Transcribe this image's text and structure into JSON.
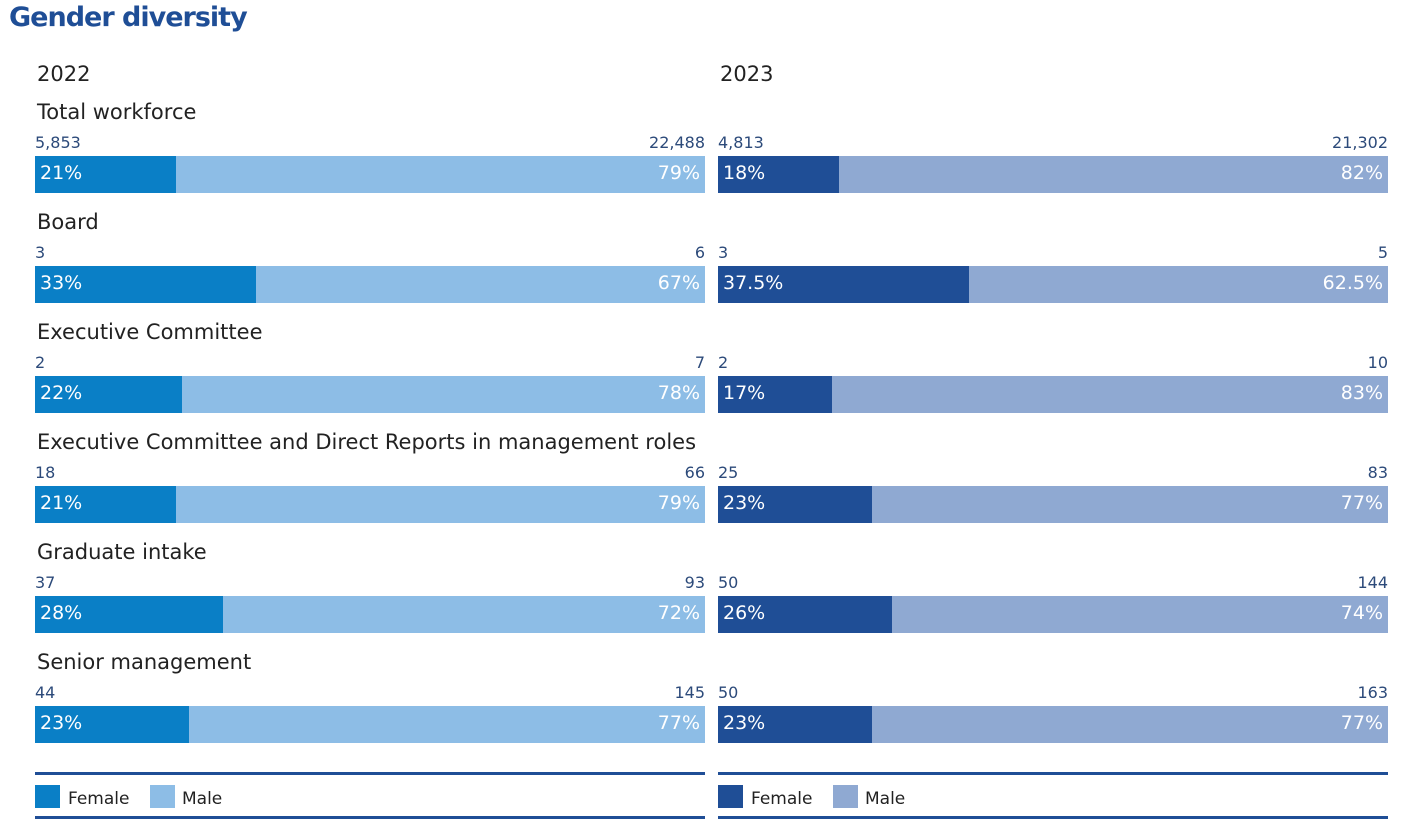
{
  "title": "Gender diversity",
  "colors": {
    "title": "#1f4e96",
    "2022_female": "#0a7fc6",
    "2022_male": "#8dbde6",
    "2023_female": "#1f4e96",
    "2023_male": "#8fa9d2"
  },
  "legend": {
    "female": "Female",
    "male": "Male"
  },
  "chart_data": [
    {
      "type": "bar",
      "title": "2022",
      "orientation": "horizontal-stacked-100",
      "categories": [
        "Total workforce",
        "Board",
        "Executive Committee",
        "Executive Committee and Direct Reports in management roles",
        "Graduate intake",
        "Senior management"
      ],
      "series": [
        {
          "name": "Female",
          "percent_labels": [
            "21%",
            "33%",
            "22%",
            "21%",
            "28%",
            "23%"
          ],
          "values": [
            21,
            33,
            22,
            21,
            28,
            23
          ],
          "counts": [
            "5,853",
            "3",
            "2",
            "18",
            "37",
            "44"
          ]
        },
        {
          "name": "Male",
          "percent_labels": [
            "79%",
            "67%",
            "78%",
            "79%",
            "72%",
            "77%"
          ],
          "values": [
            79,
            67,
            78,
            79,
            72,
            77
          ],
          "counts": [
            "22,488",
            "6",
            "7",
            "66",
            "93",
            "145"
          ]
        }
      ]
    },
    {
      "type": "bar",
      "title": "2023",
      "orientation": "horizontal-stacked-100",
      "categories": [
        "Total workforce",
        "Board",
        "Executive Committee",
        "Executive Committee and Direct Reports in management roles",
        "Graduate intake",
        "Senior management"
      ],
      "series": [
        {
          "name": "Female",
          "percent_labels": [
            "18%",
            "37.5%",
            "17%",
            "23%",
            "26%",
            "23%"
          ],
          "values": [
            18,
            37.5,
            17,
            23,
            26,
            23
          ],
          "counts": [
            "4,813",
            "3",
            "2",
            "25",
            "50",
            "50"
          ]
        },
        {
          "name": "Male",
          "percent_labels": [
            "82%",
            "62.5%",
            "83%",
            "77%",
            "74%",
            "77%"
          ],
          "values": [
            82,
            62.5,
            83,
            77,
            74,
            77
          ],
          "counts": [
            "21,302",
            "5",
            "10",
            "83",
            "144",
            "163"
          ]
        }
      ]
    }
  ]
}
